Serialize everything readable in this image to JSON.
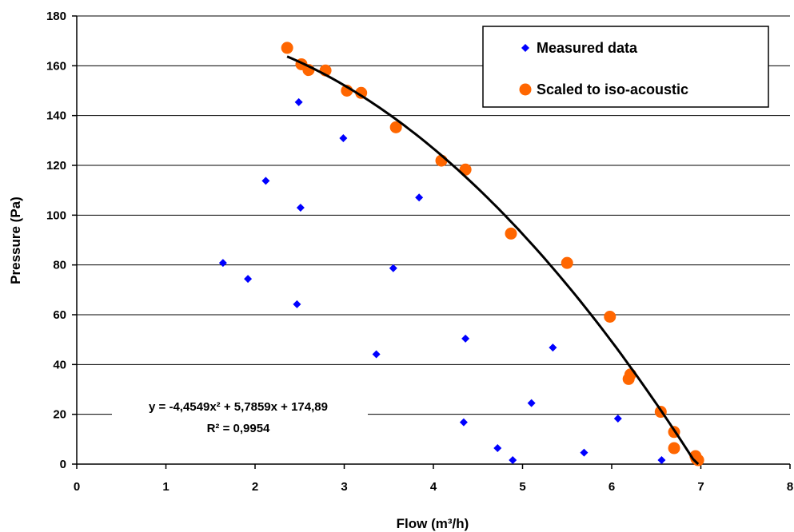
{
  "chart_data": {
    "type": "scatter",
    "xlabel": "Flow (m³/h)",
    "ylabel": "Pressure (Pa)",
    "xlim": [
      0,
      8
    ],
    "ylim": [
      0,
      180
    ],
    "x_ticks": [
      "0",
      "1",
      "2",
      "3",
      "4",
      "5",
      "6",
      "7",
      "8"
    ],
    "y_ticks": [
      "0",
      "20",
      "40",
      "60",
      "80",
      "100",
      "120",
      "140",
      "160",
      "180"
    ],
    "grid": "horizontal",
    "legend_position": "top-right",
    "series": [
      {
        "name": "Measured data",
        "marker": "diamond",
        "color": "#0000ff",
        "x": [
          1.64,
          1.92,
          2.12,
          2.47,
          2.49,
          2.51,
          2.99,
          3.36,
          3.55,
          3.84,
          4.34,
          4.36,
          4.72,
          4.89,
          5.1,
          5.34,
          5.69,
          6.07,
          6.56
        ],
        "y": [
          80.8,
          74.4,
          113.8,
          64.2,
          145.4,
          103.0,
          130.9,
          44.1,
          78.7,
          107.1,
          16.8,
          50.4,
          6.4,
          1.6,
          24.5,
          46.8,
          4.6,
          18.3,
          1.6
        ]
      },
      {
        "name": "Scaled to iso-acoustic",
        "marker": "circle",
        "color": "#ff6600",
        "x": [
          2.36,
          2.52,
          2.6,
          2.79,
          3.03,
          3.19,
          3.58,
          4.09,
          4.36,
          4.87,
          5.5,
          5.98,
          6.19,
          6.21,
          6.55,
          6.7,
          6.7,
          6.94,
          6.95,
          6.97
        ],
        "y": [
          167.2,
          160.6,
          158.3,
          158.1,
          150.0,
          149.1,
          135.3,
          121.9,
          118.3,
          92.6,
          80.8,
          59.2,
          34.2,
          36.0,
          21.0,
          12.9,
          6.4,
          3.2,
          2.2,
          1.6
        ]
      }
    ],
    "trendline": {
      "type": "polynomial",
      "coefficients": [
        -4.4549,
        5.7859,
        174.89
      ],
      "x_range": [
        2.36,
        6.97
      ],
      "color": "#000000",
      "equation": "y = -4,4549x² + 5,7859x + 174,89",
      "r_squared": "R² = 0,9954"
    }
  }
}
